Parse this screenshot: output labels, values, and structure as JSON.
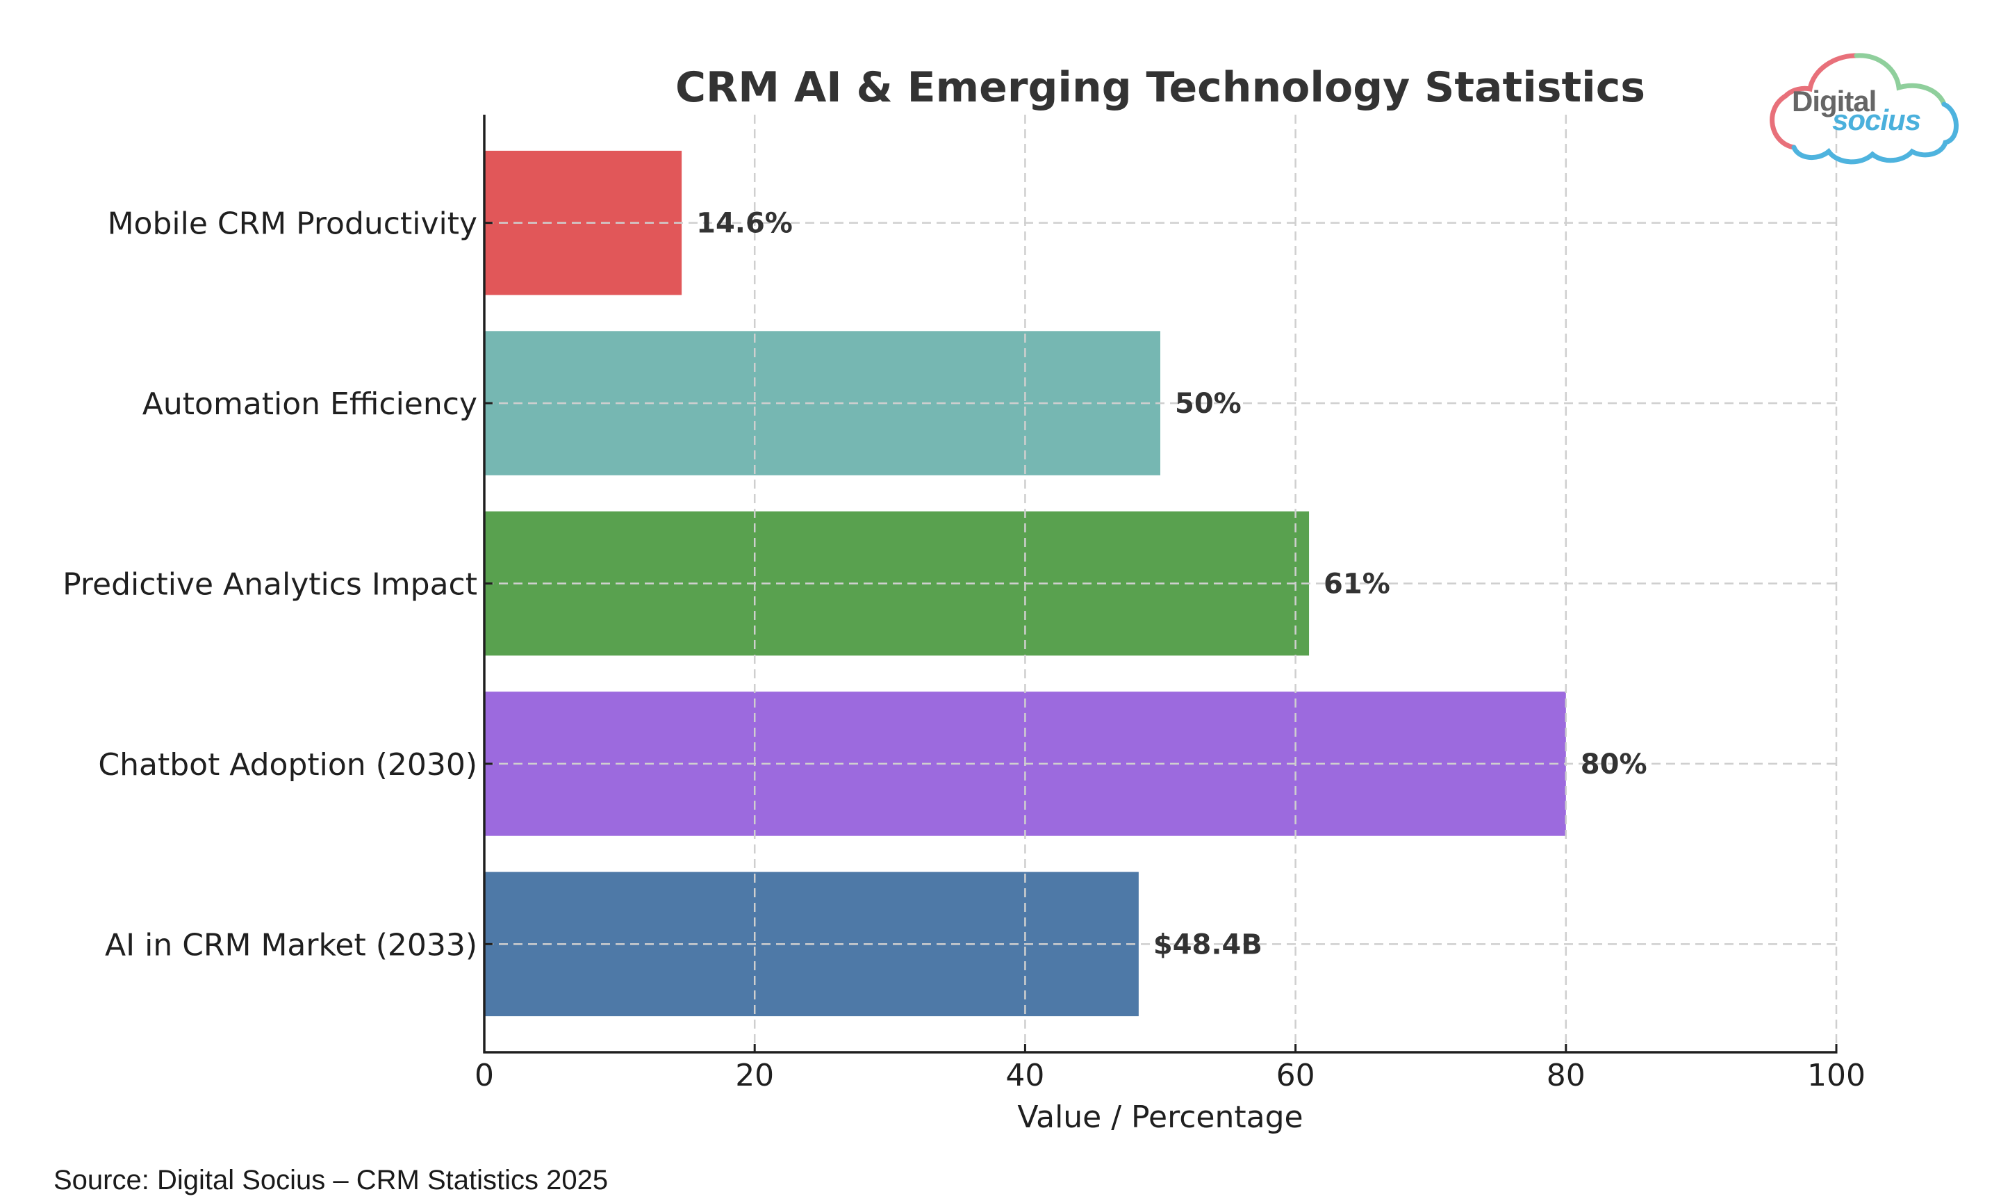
{
  "chart_data": {
    "type": "bar",
    "orientation": "horizontal",
    "title": "CRM AI & Emerging Technology Statistics",
    "xlabel": "Value / Percentage",
    "ylabel": "",
    "xlim": [
      0,
      100
    ],
    "xticks": [
      0,
      20,
      40,
      60,
      80,
      100
    ],
    "xtick_labels": [
      "0",
      "20",
      "40",
      "60",
      "80",
      "100"
    ],
    "grid": true,
    "legend": null,
    "categories": [
      "AI in CRM Market (2033)",
      "Chatbot Adoption (2030)",
      "Predictive Analytics Impact",
      "Automation Efficiency",
      "Mobile CRM Productivity"
    ],
    "values": [
      48.4,
      80,
      61,
      50,
      14.6
    ],
    "value_labels": [
      "$48.4B",
      "80%",
      "61%",
      "50%",
      "14.6%"
    ],
    "colors": [
      "#4E79A7",
      "#9C6ADE",
      "#59A14F",
      "#76B7B2",
      "#E15759"
    ],
    "order": "bottom-to-top"
  },
  "source": "Source: Digital Socius – CRM Statistics 2025",
  "logo": {
    "line1": "Digital",
    "line2": "socius",
    "text_color": "#666666",
    "accent_color": "#4AB0DC",
    "cloud_colors": [
      "#E8707A",
      "#8FCF9C",
      "#4EB3DE"
    ]
  }
}
